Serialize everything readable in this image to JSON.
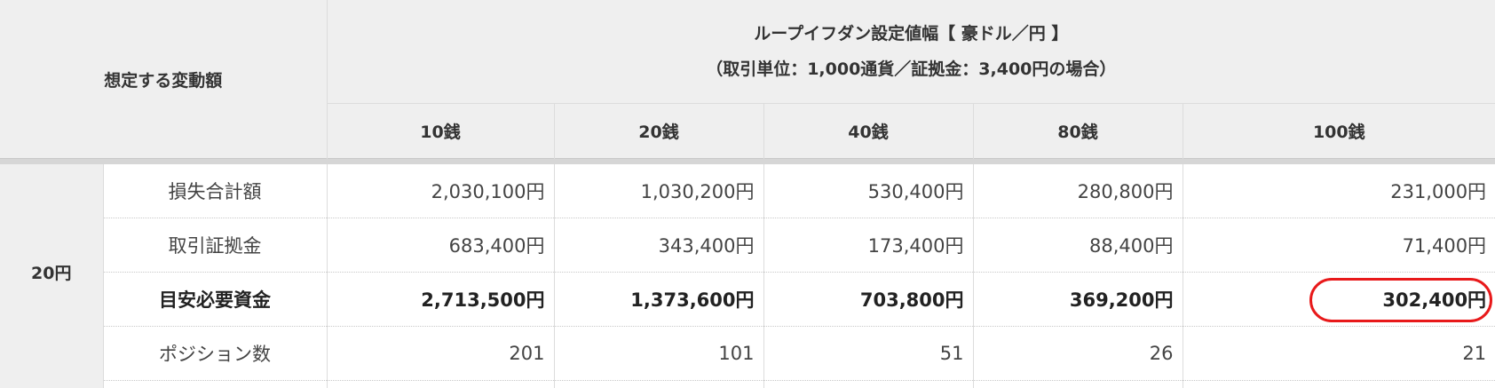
{
  "header": {
    "corner_label": "想定する変動額",
    "title": "ループイフダン設定値幅【 豪ドル／円 】",
    "subtitle": "（取引単位：1,000通貨／証拠金：3,400円の場合）",
    "columns": [
      "10銭",
      "20銭",
      "40銭",
      "80銭",
      "100銭"
    ]
  },
  "group": {
    "label": "20円",
    "rows": [
      {
        "label": "損失合計額",
        "values": [
          "2,030,100円",
          "1,030,200円",
          "530,400円",
          "280,800円",
          "231,000円"
        ]
      },
      {
        "label": "取引証拠金",
        "values": [
          "683,400円",
          "343,400円",
          "173,400円",
          "88,400円",
          "71,400円"
        ]
      },
      {
        "label": "目安必要資金",
        "values": [
          "2,713,500円",
          "1,373,600円",
          "703,800円",
          "369,200円",
          "302,400円"
        ]
      },
      {
        "label": "ポジション数",
        "values": [
          "201",
          "101",
          "51",
          "26",
          "21"
        ]
      }
    ]
  },
  "highlight_color": "#e8191a"
}
